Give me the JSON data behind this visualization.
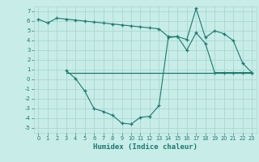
{
  "line1_x": [
    0,
    1,
    2,
    3,
    4,
    5,
    6,
    7,
    8,
    9,
    10,
    11,
    12,
    13,
    14,
    15,
    16,
    17,
    18,
    19,
    20,
    21,
    22,
    23
  ],
  "line1_y": [
    6.2,
    5.8,
    6.3,
    6.2,
    6.1,
    6.0,
    5.9,
    5.8,
    5.7,
    5.6,
    5.5,
    5.4,
    5.3,
    5.2,
    4.4,
    4.4,
    4.1,
    7.3,
    4.3,
    5.0,
    4.7,
    4.0,
    1.7,
    0.7
  ],
  "line2_x": [
    3,
    4,
    5,
    6,
    7,
    8,
    9,
    10,
    11,
    12,
    13,
    14,
    15,
    16,
    17,
    18,
    19,
    20,
    21,
    22,
    23
  ],
  "line2_y": [
    0.9,
    0.1,
    -1.2,
    -3.0,
    -3.3,
    -3.7,
    -4.5,
    -4.6,
    -3.9,
    -3.8,
    -2.7,
    4.3,
    4.4,
    3.0,
    4.8,
    3.7,
    0.7,
    0.7,
    0.7,
    0.7,
    0.7
  ],
  "hline_x": [
    3,
    23
  ],
  "hline_y": [
    0.7,
    0.7
  ],
  "color": "#1a7a6e",
  "bg_color": "#c8ece8",
  "grid_color": "#aad8d0",
  "xlabel": "Humidex (Indice chaleur)",
  "xlim": [
    -0.5,
    23.5
  ],
  "ylim": [
    -5.5,
    7.5
  ],
  "yticks": [
    -5,
    -4,
    -3,
    -2,
    -1,
    0,
    1,
    2,
    3,
    4,
    5,
    6,
    7
  ],
  "xticks": [
    0,
    1,
    2,
    3,
    4,
    5,
    6,
    7,
    8,
    9,
    10,
    11,
    12,
    13,
    14,
    15,
    16,
    17,
    18,
    19,
    20,
    21,
    22,
    23
  ]
}
